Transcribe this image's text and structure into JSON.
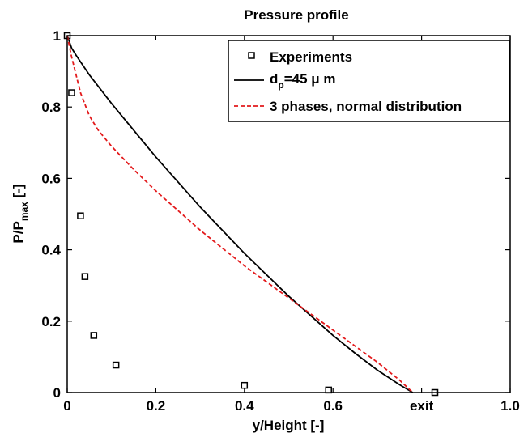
{
  "chart_data": {
    "type": "line",
    "title": "Pressure profile",
    "xlabel": "y/Height [-]",
    "ylabel_main": "P/P",
    "ylabel_sub": "max",
    "ylabel_suffix": " [-]",
    "xlim": [
      0,
      1.0
    ],
    "ylim": [
      0,
      1
    ],
    "xticks": [
      {
        "value": 0,
        "label": "0"
      },
      {
        "value": 0.2,
        "label": "0.2"
      },
      {
        "value": 0.4,
        "label": "0.4"
      },
      {
        "value": 0.6,
        "label": "0.6"
      },
      {
        "value": 0.8,
        "label": "exit"
      },
      {
        "value": 1.0,
        "label": "1.0"
      }
    ],
    "yticks": [
      {
        "value": 0,
        "label": "0"
      },
      {
        "value": 0.2,
        "label": "0.2"
      },
      {
        "value": 0.4,
        "label": "0.4"
      },
      {
        "value": 0.6,
        "label": "0.6"
      },
      {
        "value": 0.8,
        "label": "0.8"
      },
      {
        "value": 1,
        "label": "1"
      }
    ],
    "grid": false,
    "legend_position": "top-right",
    "series": [
      {
        "name": "Experiments",
        "style": "markers",
        "marker": "square",
        "color": "#000000",
        "x": [
          0.0,
          0.01,
          0.03,
          0.04,
          0.06,
          0.11,
          0.4,
          0.59,
          0.83
        ],
        "y": [
          1.0,
          0.84,
          0.495,
          0.325,
          0.16,
          0.077,
          0.02,
          0.007,
          0.0
        ]
      },
      {
        "name_main": "d",
        "name_sub": "p",
        "name_suffix": "=45 μ m",
        "style": "solid",
        "color": "#000000",
        "x": [
          0,
          0.01,
          0.02,
          0.05,
          0.1,
          0.15,
          0.2,
          0.25,
          0.3,
          0.35,
          0.4,
          0.45,
          0.5,
          0.55,
          0.6,
          0.65,
          0.7,
          0.75,
          0.78
        ],
        "y": [
          1.0,
          0.965,
          0.945,
          0.89,
          0.81,
          0.735,
          0.66,
          0.59,
          0.52,
          0.455,
          0.39,
          0.33,
          0.27,
          0.215,
          0.16,
          0.11,
          0.063,
          0.022,
          0.0
        ]
      },
      {
        "name": "3 phases, normal distribution",
        "style": "dashed",
        "color": "#e31a1c",
        "x": [
          0,
          0.01,
          0.02,
          0.03,
          0.05,
          0.07,
          0.1,
          0.15,
          0.2,
          0.25,
          0.3,
          0.35,
          0.4,
          0.45,
          0.5,
          0.55,
          0.6,
          0.65,
          0.7,
          0.75,
          0.78
        ],
        "y": [
          1.0,
          0.94,
          0.89,
          0.84,
          0.775,
          0.735,
          0.69,
          0.625,
          0.565,
          0.51,
          0.455,
          0.405,
          0.355,
          0.31,
          0.265,
          0.22,
          0.175,
          0.13,
          0.085,
          0.035,
          0.0
        ]
      }
    ]
  }
}
